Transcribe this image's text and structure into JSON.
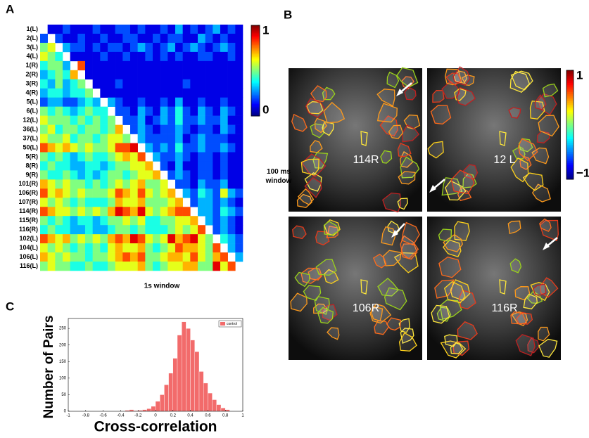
{
  "chart_data": [
    {
      "type": "heatmap",
      "panel": "A",
      "categories": [
        "1(L)",
        "2(L)",
        "3(L)",
        "4(L)",
        "1(R)",
        "2(R)",
        "3(R)",
        "4(R)",
        "5(L)",
        "6(L)",
        "12(L)",
        "36(L)",
        "37(L)",
        "50(L)",
        "5(R)",
        "8(R)",
        "9(R)",
        "101(R)",
        "106(R)",
        "107(R)",
        "114(R)",
        "115(R)",
        "116(R)",
        "102(L)",
        "104(L)",
        "106(L)",
        "116(L)"
      ],
      "values": [
        [
          null,
          0.1,
          0.1,
          0.2,
          0.1,
          0.1,
          0.1,
          0.2,
          0.1,
          0.1,
          0.2,
          0.2,
          0.1,
          0.2,
          0.1,
          0.1,
          0.2,
          0.1,
          0.3,
          0.1,
          0.2,
          0.1,
          0.2,
          0.3,
          0.1,
          0.2,
          0.1
        ],
        [
          0.2,
          null,
          0.2,
          0.1,
          0.1,
          0.2,
          0.1,
          0.1,
          0.2,
          0.1,
          0.1,
          0.2,
          0.2,
          0.1,
          0.1,
          0.2,
          0.1,
          0.2,
          0.2,
          0.1,
          0.1,
          0.3,
          0.2,
          0.1,
          0.2,
          0.1,
          0.1
        ],
        [
          0.5,
          0.6,
          null,
          0.3,
          0.2,
          0.2,
          0.1,
          0.2,
          0.1,
          0.2,
          0.2,
          0.1,
          0.2,
          0.3,
          0.2,
          0.1,
          0.2,
          0.3,
          0.1,
          0.2,
          0.3,
          0.2,
          0.1,
          0.2,
          0.3,
          0.2,
          0.1
        ],
        [
          0.6,
          0.5,
          0.4,
          null,
          0.1,
          0.1,
          0.1,
          0.1,
          0.2,
          0.1,
          0.1,
          0.2,
          0.1,
          0.1,
          0.2,
          0.1,
          0.2,
          0.1,
          0.2,
          0.1,
          0.1,
          0.2,
          0.2,
          0.1,
          0.1,
          0.2,
          0.1
        ],
        [
          0.4,
          0.5,
          0.5,
          0.3,
          null,
          0.8,
          0.1,
          0.1,
          0.1,
          0.1,
          0.1,
          0.1,
          0.1,
          0.1,
          0.1,
          0.1,
          0.1,
          0.1,
          0.1,
          0.1,
          0.1,
          0.1,
          0.1,
          0.1,
          0.1,
          0.1,
          0.1
        ],
        [
          0.3,
          0.4,
          0.5,
          0.4,
          0.7,
          null,
          0.1,
          0.1,
          0.1,
          0.1,
          0.1,
          0.1,
          0.1,
          0.1,
          0.1,
          0.1,
          0.1,
          0.1,
          0.1,
          0.1,
          0.1,
          0.1,
          0.1,
          0.1,
          0.1,
          0.1,
          0.1
        ],
        [
          0.4,
          0.3,
          0.5,
          0.3,
          0.4,
          0.5,
          null,
          0.1,
          0.1,
          0.1,
          0.2,
          0.1,
          0.1,
          0.1,
          0.1,
          0.1,
          0.1,
          0.1,
          0.1,
          0.2,
          0.1,
          0.1,
          0.1,
          0.1,
          0.1,
          0.1,
          0.1
        ],
        [
          0.3,
          0.4,
          0.4,
          0.3,
          0.4,
          0.4,
          0.5,
          null,
          0.1,
          0.1,
          0.1,
          0.1,
          0.1,
          0.1,
          0.1,
          0.1,
          0.1,
          0.1,
          0.1,
          0.1,
          0.1,
          0.1,
          0.1,
          0.1,
          0.1,
          0.1,
          0.1
        ],
        [
          0.2,
          0.3,
          0.3,
          0.2,
          0.2,
          0.3,
          0.4,
          0.3,
          null,
          0.3,
          0.2,
          0.1,
          0.1,
          0.2,
          0.1,
          0.1,
          0.2,
          0.1,
          0.3,
          0.1,
          0.1,
          0.2,
          0.1,
          0.1,
          0.2,
          0.1,
          0.1
        ],
        [
          0.5,
          0.4,
          0.5,
          0.4,
          0.3,
          0.4,
          0.5,
          0.4,
          0.4,
          null,
          0.2,
          0.2,
          0.1,
          0.3,
          0.2,
          0.1,
          0.3,
          0.2,
          0.4,
          0.2,
          0.1,
          0.3,
          0.2,
          0.1,
          0.3,
          0.2,
          0.1
        ],
        [
          0.6,
          0.5,
          0.5,
          0.5,
          0.4,
          0.5,
          0.4,
          0.5,
          0.4,
          0.5,
          null,
          0.2,
          0.2,
          0.3,
          0.1,
          0.2,
          0.3,
          0.2,
          0.4,
          0.2,
          0.2,
          0.3,
          0.2,
          0.2,
          0.3,
          0.1,
          0.1
        ],
        [
          0.5,
          0.6,
          0.4,
          0.5,
          0.5,
          0.4,
          0.5,
          0.5,
          0.4,
          0.5,
          0.7,
          null,
          0.2,
          0.3,
          0.2,
          0.1,
          0.2,
          0.2,
          0.3,
          0.2,
          0.1,
          0.2,
          0.2,
          0.1,
          0.3,
          0.2,
          0.1
        ],
        [
          0.6,
          0.5,
          0.5,
          0.6,
          0.4,
          0.5,
          0.5,
          0.4,
          0.5,
          0.6,
          0.6,
          0.5,
          null,
          0.3,
          0.2,
          0.2,
          0.2,
          0.2,
          0.3,
          0.1,
          0.2,
          0.3,
          0.2,
          0.2,
          0.2,
          0.1,
          0.1
        ],
        [
          0.8,
          0.7,
          0.6,
          0.7,
          0.6,
          0.5,
          0.6,
          0.5,
          0.5,
          0.6,
          0.8,
          0.8,
          0.9,
          null,
          0.3,
          0.2,
          0.3,
          0.2,
          0.4,
          0.2,
          0.2,
          0.3,
          0.2,
          0.2,
          0.3,
          0.2,
          0.1
        ],
        [
          0.5,
          0.4,
          0.5,
          0.4,
          0.3,
          0.4,
          0.5,
          0.4,
          0.4,
          0.5,
          0.6,
          0.7,
          0.6,
          0.8,
          null,
          0.3,
          0.2,
          0.2,
          0.3,
          0.2,
          0.1,
          0.2,
          0.2,
          0.1,
          0.2,
          0.1,
          0.1
        ],
        [
          0.4,
          0.5,
          0.4,
          0.4,
          0.3,
          0.3,
          0.4,
          0.4,
          0.3,
          0.4,
          0.5,
          0.5,
          0.6,
          0.6,
          0.7,
          null,
          0.2,
          0.1,
          0.3,
          0.1,
          0.1,
          0.2,
          0.2,
          0.1,
          0.2,
          0.1,
          0.1
        ],
        [
          0.5,
          0.4,
          0.4,
          0.5,
          0.4,
          0.3,
          0.4,
          0.3,
          0.4,
          0.5,
          0.5,
          0.4,
          0.5,
          0.6,
          0.6,
          0.7,
          null,
          0.2,
          0.3,
          0.2,
          0.1,
          0.2,
          0.2,
          0.1,
          0.2,
          0.1,
          0.1
        ],
        [
          0.7,
          0.6,
          0.5,
          0.6,
          0.5,
          0.5,
          0.4,
          0.5,
          0.4,
          0.5,
          0.6,
          0.5,
          0.6,
          0.7,
          0.5,
          0.5,
          0.6,
          null,
          0.2,
          0.2,
          0.1,
          0.3,
          0.2,
          0.2,
          0.3,
          0.1,
          0.1
        ],
        [
          0.8,
          0.6,
          0.7,
          0.6,
          0.5,
          0.6,
          0.5,
          0.5,
          0.5,
          0.6,
          0.8,
          0.7,
          0.6,
          0.8,
          0.6,
          0.5,
          0.6,
          0.7,
          null,
          0.3,
          0.2,
          0.4,
          0.3,
          0.2,
          0.6,
          0.3,
          0.2
        ],
        [
          0.6,
          0.5,
          0.6,
          0.5,
          0.4,
          0.5,
          0.4,
          0.4,
          0.4,
          0.5,
          0.7,
          0.6,
          0.6,
          0.7,
          0.5,
          0.5,
          0.5,
          0.6,
          0.7,
          null,
          0.2,
          0.3,
          0.3,
          0.2,
          0.3,
          0.2,
          0.1
        ],
        [
          0.8,
          0.7,
          0.6,
          0.6,
          0.5,
          0.6,
          0.5,
          0.6,
          0.5,
          0.7,
          0.9,
          0.8,
          0.7,
          0.9,
          0.6,
          0.5,
          0.6,
          0.7,
          0.8,
          0.8,
          null,
          0.3,
          0.3,
          0.2,
          0.4,
          0.3,
          0.2
        ],
        [
          0.5,
          0.4,
          0.5,
          0.4,
          0.3,
          0.4,
          0.4,
          0.3,
          0.4,
          0.5,
          0.5,
          0.6,
          0.5,
          0.6,
          0.4,
          0.4,
          0.5,
          0.5,
          0.6,
          0.6,
          0.7,
          null,
          0.3,
          0.2,
          0.3,
          0.2,
          0.1
        ],
        [
          0.4,
          0.5,
          0.4,
          0.4,
          0.3,
          0.3,
          0.4,
          0.3,
          0.3,
          0.4,
          0.5,
          0.5,
          0.4,
          0.5,
          0.4,
          0.4,
          0.4,
          0.5,
          0.6,
          0.5,
          0.6,
          0.8,
          null,
          0.2,
          0.3,
          0.2,
          0.1
        ],
        [
          0.8,
          0.7,
          0.6,
          0.7,
          0.5,
          0.6,
          0.5,
          0.6,
          0.5,
          0.7,
          0.8,
          0.7,
          0.9,
          0.8,
          0.6,
          0.5,
          0.6,
          0.9,
          0.7,
          0.8,
          0.9,
          0.6,
          0.5,
          null,
          0.4,
          0.3,
          0.2
        ],
        [
          0.6,
          0.5,
          0.6,
          0.5,
          0.4,
          0.5,
          0.4,
          0.5,
          0.4,
          0.6,
          0.7,
          0.6,
          0.6,
          0.7,
          0.5,
          0.4,
          0.5,
          0.6,
          0.8,
          0.7,
          0.7,
          0.6,
          0.5,
          0.8,
          null,
          0.3,
          0.2
        ],
        [
          0.7,
          0.6,
          0.5,
          0.6,
          0.5,
          0.5,
          0.4,
          0.5,
          0.5,
          0.6,
          0.7,
          0.8,
          0.7,
          0.8,
          0.5,
          0.5,
          0.6,
          0.7,
          0.7,
          0.6,
          0.8,
          0.6,
          0.5,
          0.7,
          0.8,
          null,
          0.3
        ],
        [
          0.5,
          0.6,
          0.5,
          0.5,
          0.4,
          0.4,
          0.5,
          0.4,
          0.4,
          0.5,
          0.6,
          0.6,
          0.6,
          0.7,
          0.5,
          0.4,
          0.5,
          0.6,
          0.6,
          0.7,
          0.7,
          0.5,
          0.5,
          0.9,
          0.6,
          0.8,
          null
        ]
      ],
      "colormap": "jet",
      "clim": [
        0,
        1
      ],
      "cbar_ticks": [
        0,
        1
      ],
      "ylabel": "100 ms window",
      "xlabel": "1s window"
    },
    {
      "type": "image-grid",
      "panel": "B",
      "labels": [
        "114R",
        "12 L",
        "106R",
        "116R"
      ],
      "colormap": "jet",
      "clim": [
        -1,
        1
      ],
      "cbar_ticks": [
        {
          "value": -1,
          "label": "−1"
        },
        1
      ]
    },
    {
      "type": "histogram",
      "panel": "C",
      "bins": [
        -0.35,
        -0.3,
        -0.25,
        -0.2,
        -0.15,
        -0.1,
        -0.05,
        0,
        0.05,
        0.1,
        0.15,
        0.2,
        0.25,
        0.3,
        0.35,
        0.4,
        0.45,
        0.5,
        0.55,
        0.6,
        0.65,
        0.7,
        0.75,
        0.8,
        0.85
      ],
      "series": [
        {
          "name": "control",
          "color": "#f26b6b",
          "values": [
            3,
            5,
            2,
            3,
            5,
            8,
            15,
            30,
            50,
            80,
            115,
            160,
            230,
            270,
            250,
            215,
            180,
            120,
            85,
            55,
            35,
            20,
            10,
            5
          ]
        }
      ],
      "xlim": [
        -1,
        1
      ],
      "ylim": [
        0,
        280
      ],
      "xticks": [
        -1,
        -0.8,
        -0.6,
        -0.4,
        -0.2,
        0,
        0.2,
        0.4,
        0.6,
        0.8,
        1
      ],
      "yticks": [
        0,
        50,
        100,
        150,
        200,
        250
      ],
      "xlabel": "Cross-correlation",
      "ylabel": "Number of Pairs",
      "legend": "upper right"
    }
  ]
}
